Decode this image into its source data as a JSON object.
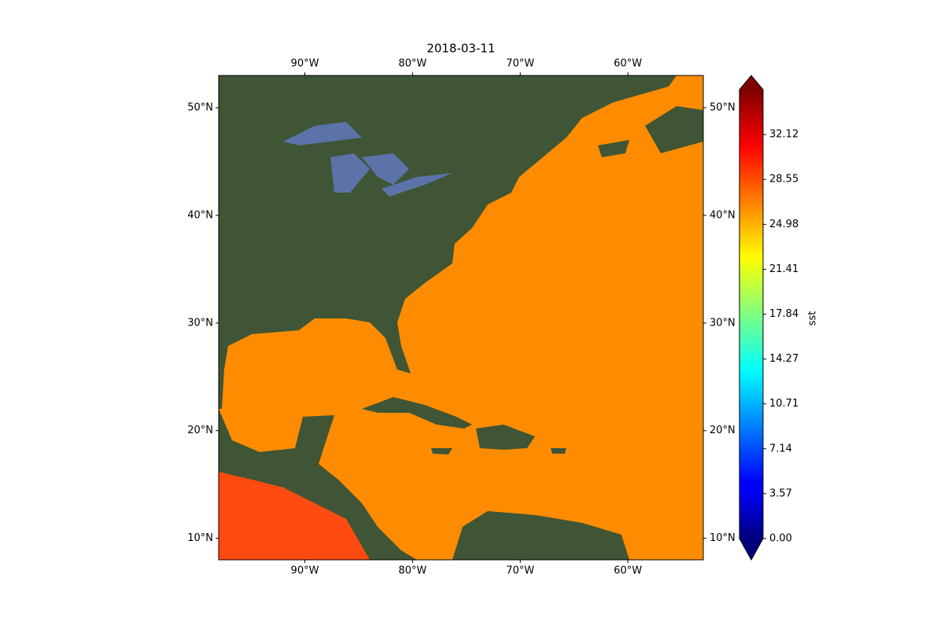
{
  "chart_data": {
    "type": "map",
    "title": "2018-03-11",
    "xlim": [
      -98,
      -53
    ],
    "ylim": [
      8,
      53
    ],
    "xticks": [
      {
        "value": -90,
        "label": "90°W"
      },
      {
        "value": -80,
        "label": "80°W"
      },
      {
        "value": -70,
        "label": "70°W"
      },
      {
        "value": -60,
        "label": "60°W"
      }
    ],
    "yticks": [
      {
        "value": 10,
        "label": "10°N"
      },
      {
        "value": 20,
        "label": "20°N"
      },
      {
        "value": 30,
        "label": "30°N"
      },
      {
        "value": 40,
        "label": "40°N"
      },
      {
        "value": 50,
        "label": "50°N"
      }
    ],
    "colorbar": {
      "label": "sst",
      "colormap": "jet",
      "clim": [
        0,
        35.69
      ],
      "ticks": [
        {
          "value": 0,
          "label": "0.00"
        },
        {
          "value": 3.57,
          "label": "3.57"
        },
        {
          "value": 7.14,
          "label": "7.14"
        },
        {
          "value": 10.71,
          "label": "10.71"
        },
        {
          "value": 14.27,
          "label": "14.27"
        },
        {
          "value": 17.84,
          "label": "17.84"
        },
        {
          "value": 21.41,
          "label": "21.41"
        },
        {
          "value": 24.98,
          "label": "24.98"
        },
        {
          "value": 28.55,
          "label": "28.55"
        },
        {
          "value": 32.12,
          "label": "32.12"
        }
      ]
    }
  }
}
